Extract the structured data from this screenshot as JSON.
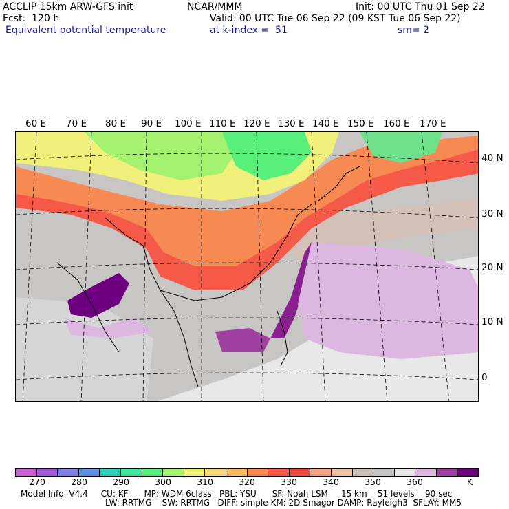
{
  "header": {
    "model": "ACCLIP 15km ARW-GFS init",
    "center": "NCAR/MMM",
    "init": "Init: 00 UTC Thu 01 Sep 22",
    "fcst": "Fcst:  120 h",
    "valid": "Valid: 00 UTC Tue 06 Sep 22 (09 KST Tue 06 Sep 22)",
    "field": "Equivalent potential temperature",
    "level": "at k-index =  51",
    "smooth": "sm= 2"
  },
  "map": {
    "lon_labels": [
      "60 E",
      "70 E",
      "80 E",
      "90 E",
      "100 E",
      "110 E",
      "120 E",
      "130 E",
      "140 E",
      "150 E",
      "160 E",
      "170 E"
    ],
    "lat_labels": [
      "40 N",
      "30 N",
      "20 N",
      "10 N",
      "0"
    ]
  },
  "colorbar": {
    "colors": [
      "#c95fd0",
      "#a25ed6",
      "#7f7fe6",
      "#5e8fe0",
      "#2fd0c0",
      "#3ee6a0",
      "#58f07a",
      "#a4f270",
      "#f0f07a",
      "#f5d878",
      "#f5b860",
      "#f78a52",
      "#f55a48",
      "#ee4a40",
      "#f2a488",
      "#edc4a8",
      "#c8c0b8",
      "#c6c6c6",
      "#e8e8e8",
      "#dcb8e0",
      "#a040a0",
      "#6e0080"
    ],
    "tick_labels": [
      "270",
      "280",
      "290",
      "300",
      "310",
      "320",
      "330",
      "340",
      "350",
      "360"
    ],
    "unit": "K"
  },
  "footer": {
    "line1": "Model Info: V4.4     CU: KF      MP: WDM 6class   PBL: YSU      SF: Noah LSM     15 km    51 levels    90 sec",
    "line2": "LW: RRTMG    SW: RRTMG   DIFF: simple KM: 2D Smagor DAMP: Rayleigh3  SFLAY: MM5"
  }
}
